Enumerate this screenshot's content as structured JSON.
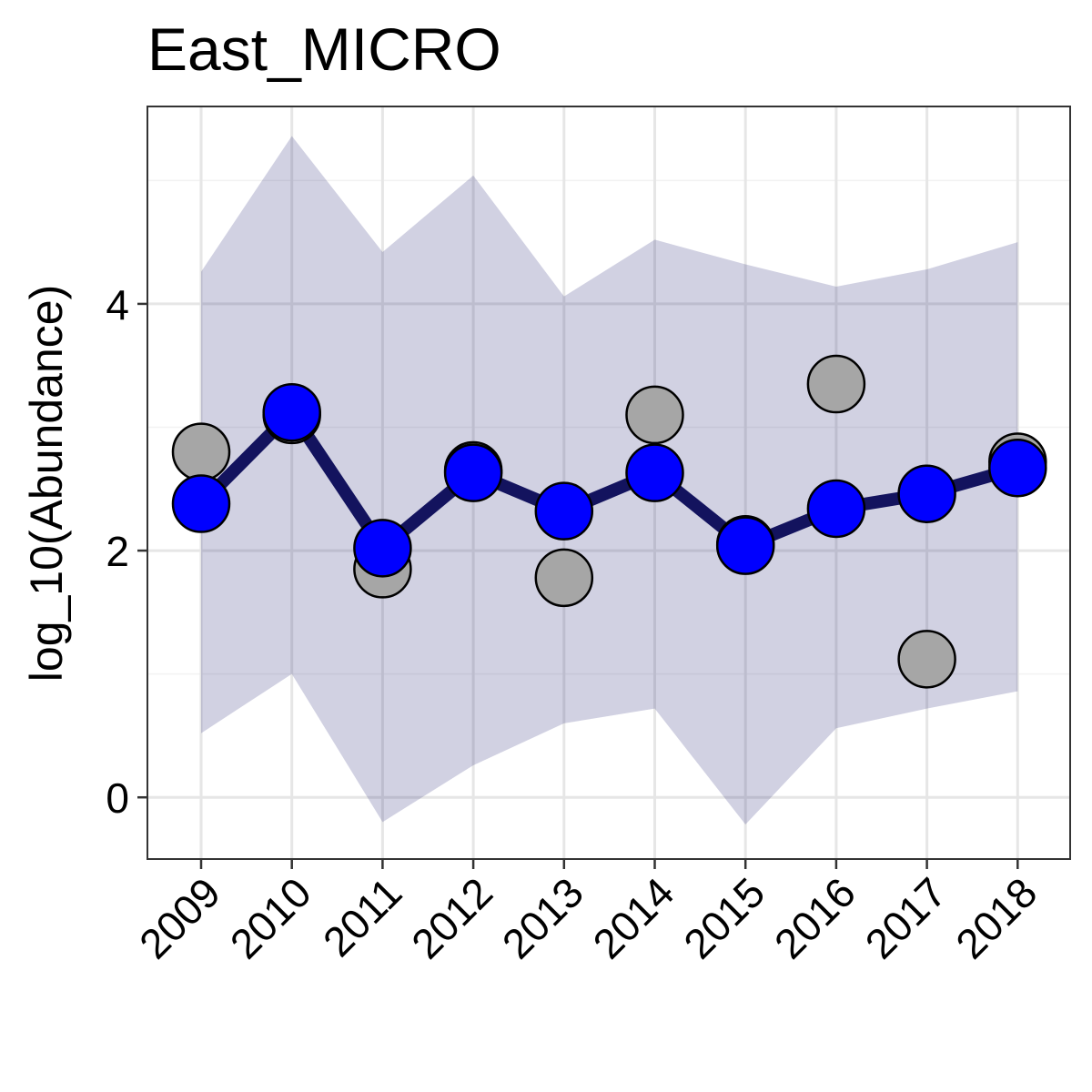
{
  "chart_data": {
    "type": "line",
    "title": "East_MICRO",
    "xlabel": "",
    "ylabel": "log_10(Abundance)",
    "categories": [
      "2009",
      "2010",
      "2011",
      "2012",
      "2013",
      "2014",
      "2015",
      "2016",
      "2017",
      "2018"
    ],
    "y_ticks": [
      0,
      2,
      4
    ],
    "y_tick_labels": [
      "0",
      "2",
      "4"
    ],
    "ylim": [
      -0.5,
      5.6
    ],
    "grid": true,
    "legend": "none",
    "series": [
      {
        "kind": "ribbon",
        "lower": [
          0.52,
          1.0,
          -0.2,
          0.26,
          0.6,
          0.72,
          -0.22,
          0.56,
          0.72,
          0.86
        ],
        "upper": [
          4.26,
          5.36,
          4.42,
          5.04,
          4.06,
          4.52,
          4.32,
          4.14,
          4.28,
          4.5
        ]
      },
      {
        "kind": "points",
        "values": [
          2.8,
          3.1,
          1.85,
          2.65,
          1.78,
          3.1,
          2.05,
          3.35,
          1.12,
          2.72
        ]
      },
      {
        "kind": "line",
        "values": [
          2.38,
          3.12,
          2.02,
          2.63,
          2.32,
          2.63,
          2.04,
          2.34,
          2.46,
          2.67
        ]
      }
    ],
    "colors": {
      "ribbon": "#191970",
      "ribbon_opacity": 0.2,
      "line": "#13135e",
      "fitted_point": "#0000ff",
      "observed_point": "#a6a6a6",
      "point_stroke": "#000000",
      "grid_major": "#e6e6e6",
      "grid_minor": "#f2f2f2",
      "panel_border": "#333333"
    }
  }
}
